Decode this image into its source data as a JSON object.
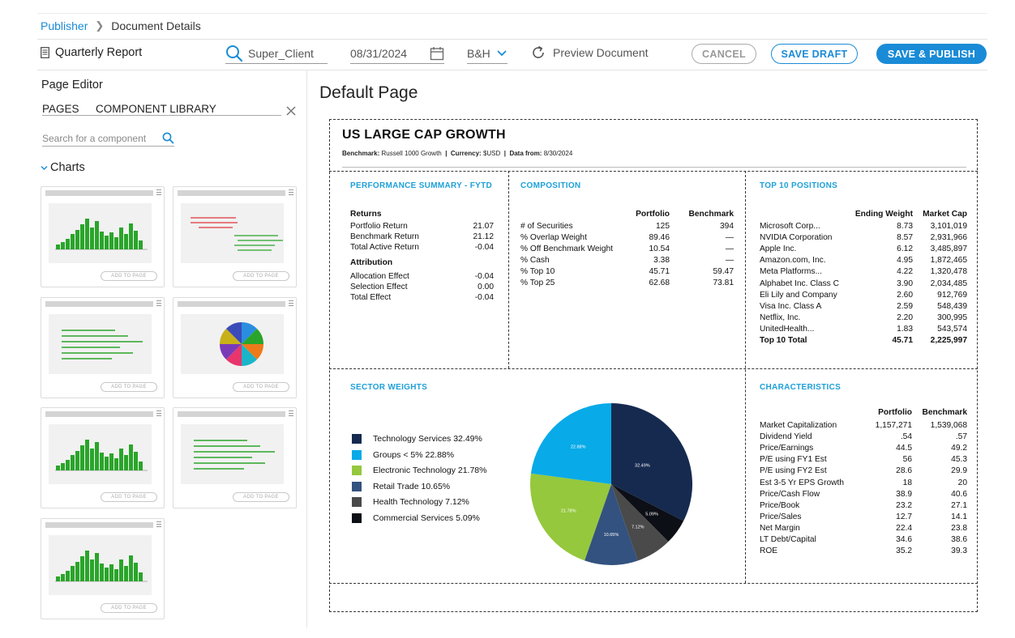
{
  "breadcrumb": {
    "root": "Publisher",
    "current": "Document Details"
  },
  "toolbar": {
    "doc_name": "Quarterly Report",
    "client": "Super_Client",
    "date": "08/31/2024",
    "entity": "B&H",
    "preview": "Preview Document",
    "cancel": "CANCEL",
    "save_draft": "SAVE DRAFT",
    "save_publish": "SAVE & PUBLISH",
    "accent": "#1a8bd6"
  },
  "left_panel": {
    "title": "Page Editor",
    "tabs": [
      "PAGES",
      "COMPONENT LIBRARY"
    ],
    "search_placeholder": "Search for a component",
    "section": "Charts",
    "tile_button": "ADD TO PAGE",
    "tile_previews": [
      "bar-chart",
      "bullet-chart",
      "horizontal-bar-chart",
      "pie-chart",
      "bar-chart",
      "horizontal-bar-chart",
      "bar-chart"
    ]
  },
  "main": {
    "title": "Default Page",
    "report": {
      "title": "US LARGE CAP GROWTH",
      "benchmark_label": "Benchmark:",
      "benchmark": "Russell 1000 Growth",
      "currency_label": "Currency:",
      "currency": "$USD",
      "data_from_label": "Data from:",
      "data_from": "8/30/2024"
    },
    "performance": {
      "title": "PERFORMANCE SUMMARY - FYTD",
      "returns_label": "Returns",
      "returns": [
        {
          "label": "Portfolio Return",
          "value": "21.07"
        },
        {
          "label": "Benchmark Return",
          "value": "21.12"
        },
        {
          "label": "Total Active Return",
          "value": "-0.04"
        }
      ],
      "attribution_label": "Attribution",
      "attribution": [
        {
          "label": "Allocation Effect",
          "value": "-0.04"
        },
        {
          "label": "Selection  Effect",
          "value": "0.00"
        },
        {
          "label": "Total Effect",
          "value": "-0.04"
        }
      ]
    },
    "composition": {
      "title": "COMPOSITION",
      "headers": [
        "Portfolio",
        "Benchmark"
      ],
      "rows": [
        {
          "label": "# of Securities",
          "p": "125",
          "b": "394"
        },
        {
          "label": "% Overlap Weight",
          "p": "89.46",
          "b": "—"
        },
        {
          "label": "% Off Benchmark Weight",
          "p": "10.54",
          "b": "—"
        },
        {
          "label": "% Cash",
          "p": "3.38",
          "b": "—"
        },
        {
          "label": "% Top 10",
          "p": "45.71",
          "b": "59.47"
        },
        {
          "label": "% Top 25",
          "p": "62.68",
          "b": "73.81"
        }
      ]
    },
    "top10": {
      "title": "TOP 10 POSITIONS",
      "headers": [
        "Ending Weight",
        "Market Cap"
      ],
      "rows": [
        {
          "label": "Microsoft Corp...",
          "w": "8.73",
          "m": "3,101,019"
        },
        {
          "label": "NVIDIA Corporation",
          "w": "8.57",
          "m": "2,931,966"
        },
        {
          "label": "Apple Inc.",
          "w": "6.12",
          "m": "3,485,897"
        },
        {
          "label": "Amazon.com, Inc.",
          "w": "4.95",
          "m": "1,872,465"
        },
        {
          "label": "Meta Platforms...",
          "w": "4.22",
          "m": "1,320,478"
        },
        {
          "label": "Alphabet Inc. Class C",
          "w": "3.90",
          "m": "2,034,485"
        },
        {
          "label": "Eli Lily and Company",
          "w": "2.60",
          "m": "912,769"
        },
        {
          "label": "Visa Inc. Class A",
          "w": "2.59",
          "m": "548,439"
        },
        {
          "label": "Netflix, Inc.",
          "w": "2.20",
          "m": "300,995"
        },
        {
          "label": "UnitedHealth...",
          "w": "1.83",
          "m": "543,574"
        }
      ],
      "total": {
        "label": "Top 10 Total",
        "w": "45.71",
        "m": "2,225,997"
      }
    },
    "sector": {
      "title": "SECTOR WEIGHTS",
      "legend": [
        "Technology Services 32.49%",
        "Groups < 5% 22.88%",
        "Electronic Technology 21.78%",
        "Retail Trade 10.65%",
        "Health Technology 7.12%",
        "Commercial Services 5.09%"
      ],
      "slice_labels": [
        "32.49%",
        "22.88%",
        "21.78%",
        "10.65%",
        "7.12%",
        "5.09%"
      ]
    },
    "characteristics": {
      "title": "CHARACTERISTICS",
      "headers": [
        "Portfolio",
        "Benchmark"
      ],
      "rows": [
        {
          "label": "Market Capitalization",
          "p": "1,157,271",
          "b": "1,539,068"
        },
        {
          "label": "Dividend Yield",
          "p": ".54",
          "b": ".57"
        },
        {
          "label": "Price/Earnings",
          "p": "44.5",
          "b": "49.2"
        },
        {
          "label": "P/E using FY1 Est",
          "p": "56",
          "b": "45.3"
        },
        {
          "label": "P/E using FY2 Est",
          "p": "28.6",
          "b": "29.9"
        },
        {
          "label": "Est 3-5 Yr EPS Growth",
          "p": "18",
          "b": "20"
        },
        {
          "label": "Price/Cash Flow",
          "p": "38.9",
          "b": "40.6"
        },
        {
          "label": "Price/Book",
          "p": "23.2",
          "b": "27.1"
        },
        {
          "label": "Price/Sales",
          "p": "12.7",
          "b": "14.1"
        },
        {
          "label": "Net Margin",
          "p": "22.4",
          "b": "23.8"
        },
        {
          "label": "LT Debt/Capital",
          "p": "34.6",
          "b": "38.6"
        },
        {
          "label": "ROE",
          "p": "35.2",
          "b": "39.3"
        }
      ]
    }
  },
  "chart_data": {
    "type": "pie",
    "categories": [
      "Technology Services",
      "Groups < 5%",
      "Electronic Technology",
      "Retail Trade",
      "Health Technology",
      "Commercial Services"
    ],
    "values": [
      32.49,
      22.88,
      21.78,
      10.65,
      7.12,
      5.09
    ],
    "colors": [
      "#162a4f",
      "#08aae8",
      "#95c83d",
      "#33527f",
      "#4a4a4a",
      "#0c0f16"
    ],
    "legend": "left"
  }
}
